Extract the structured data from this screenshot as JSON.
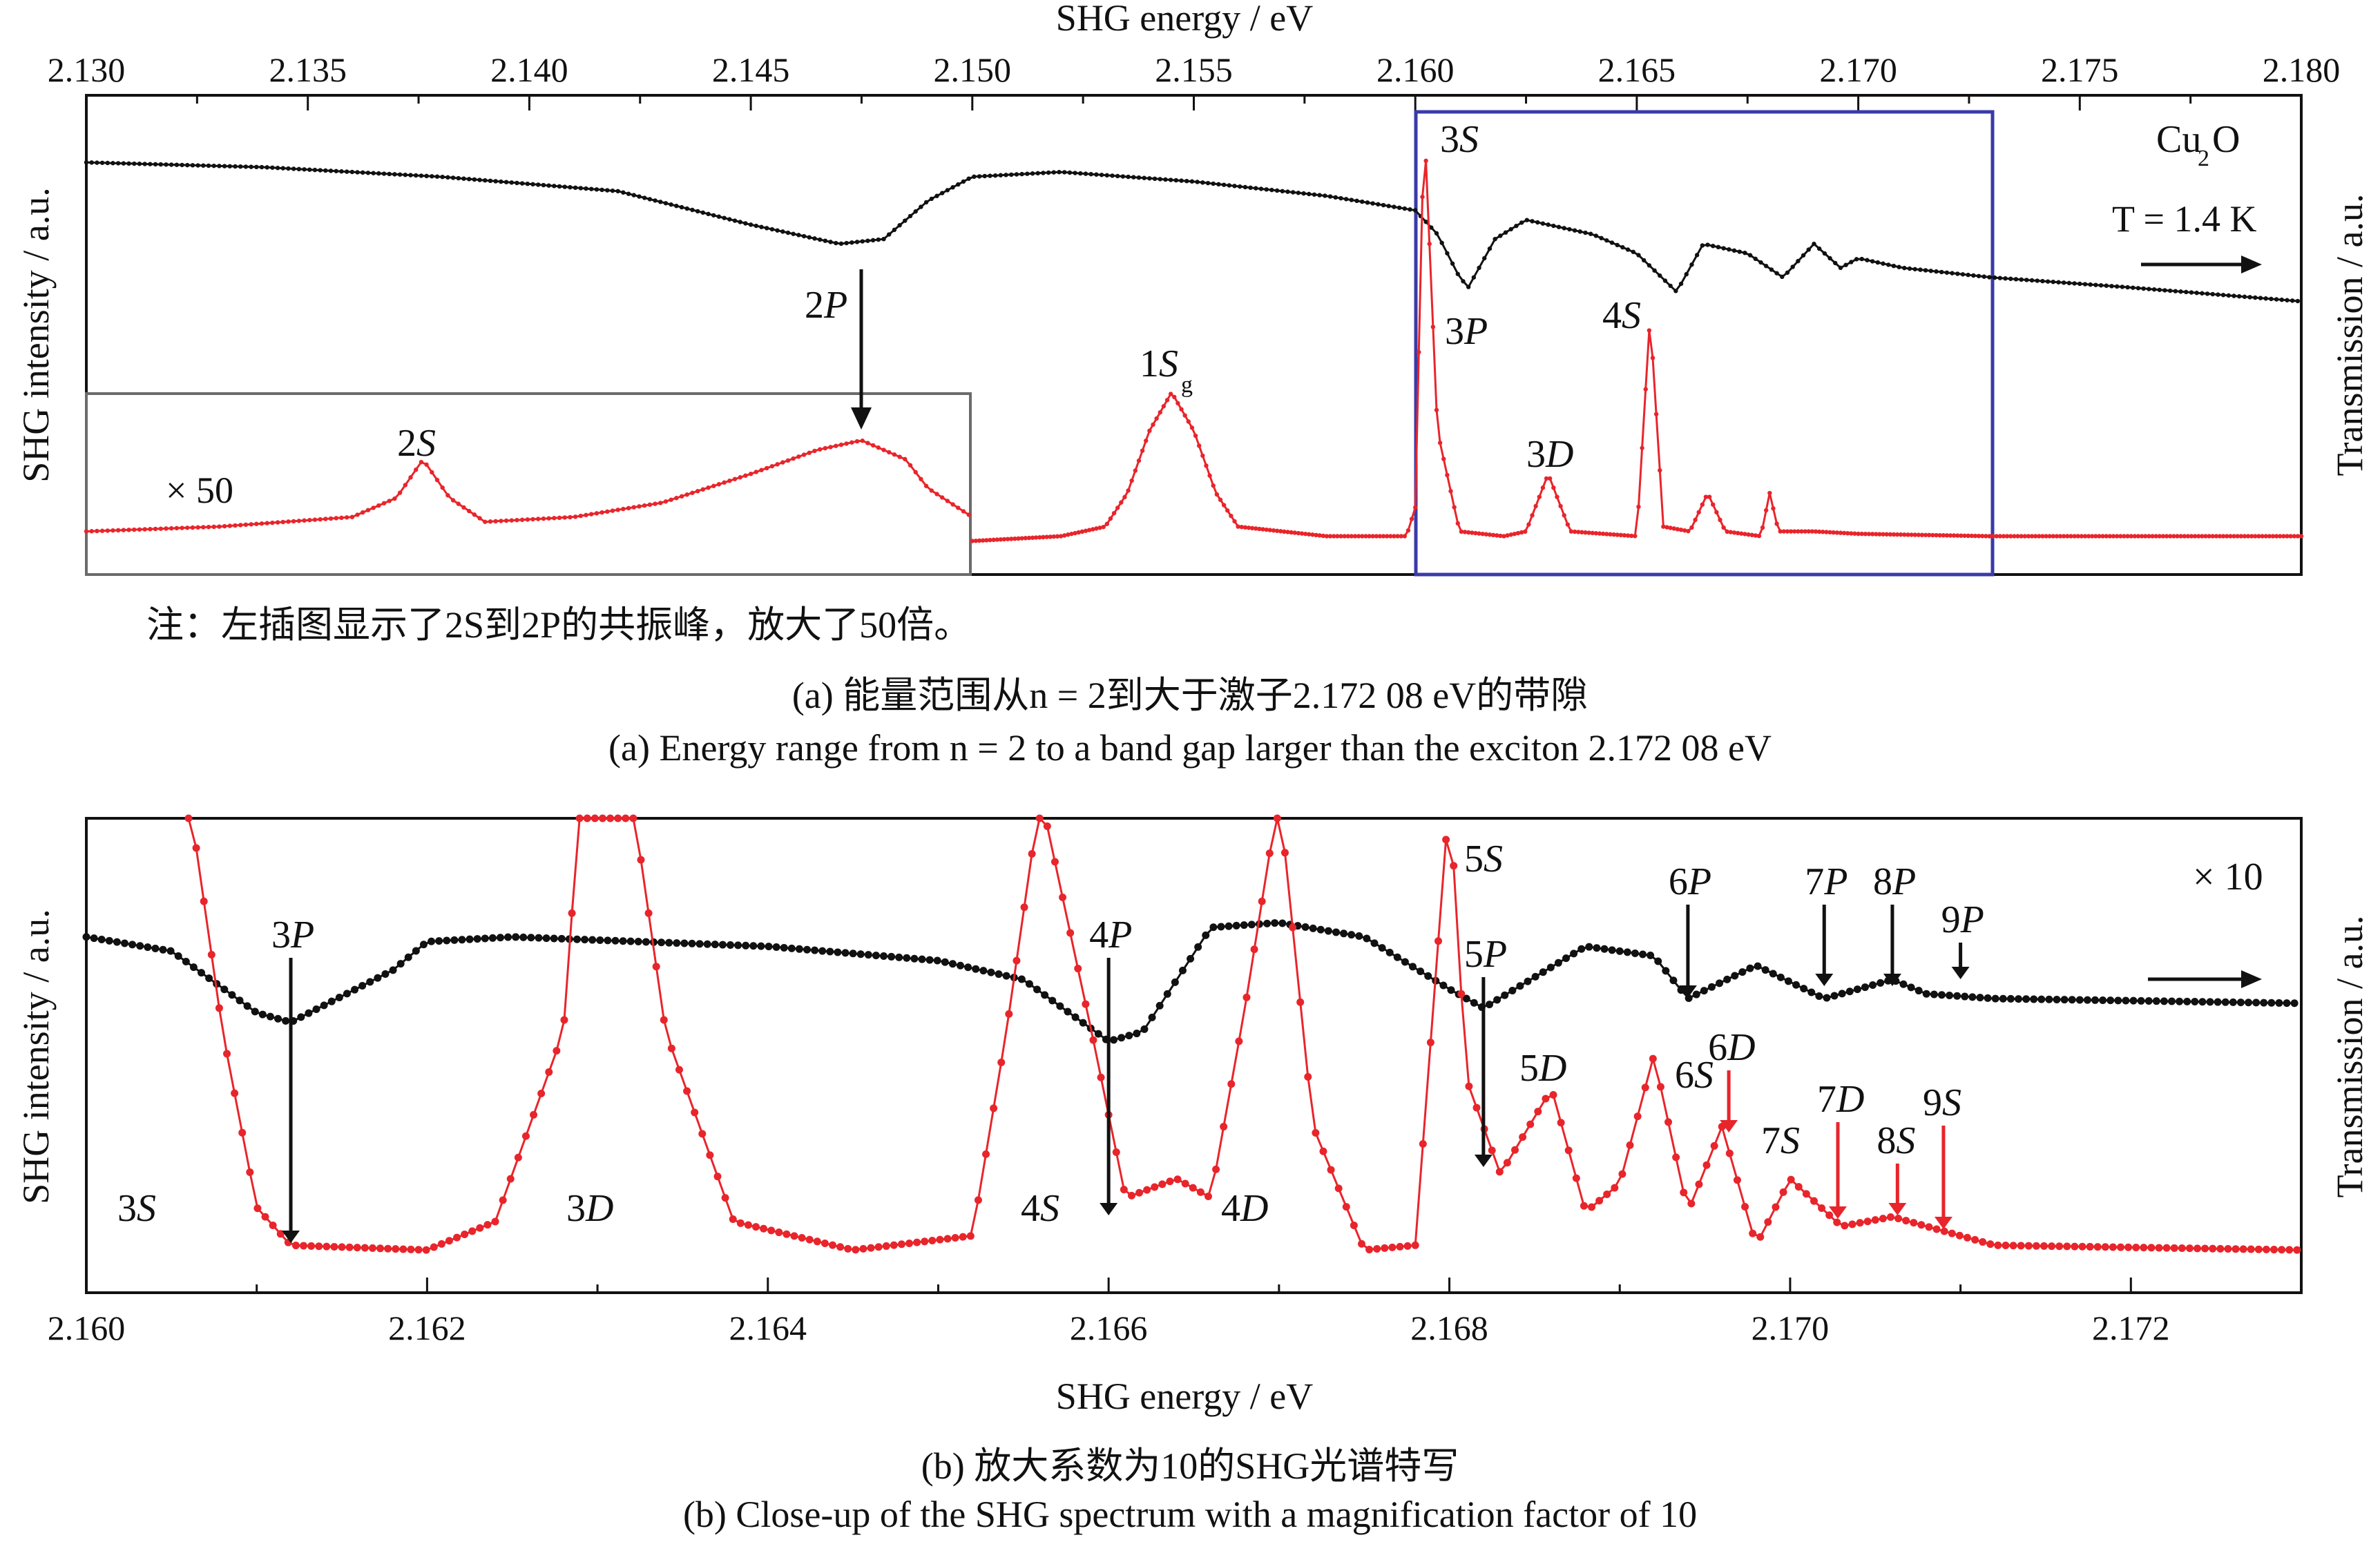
{
  "figure": {
    "panel_a": {
      "x_axis_title": "SHG energy / eV",
      "left_axis_title": "SHG intensity / a.u.",
      "right_axis_title": "Transmission / a.u.",
      "x_tick_labels": [
        "2.130",
        "2.135",
        "2.140",
        "2.145",
        "2.150",
        "2.155",
        "2.160",
        "2.165",
        "2.170",
        "2.175",
        "2.180"
      ],
      "note": "注：左插图显示了2S到2P的共振峰，放大了50倍。",
      "caption_cn": "(a) 能量范围从n = 2到大于激子2.172 08 eV的带隙",
      "caption_en": "(a) Energy range from n = 2 to a band gap larger than the exciton 2.172 08 eV"
    },
    "panel_b": {
      "x_axis_title": "SHG energy / eV",
      "left_axis_title": "SHG intensity / a.u.",
      "right_axis_title": "Transmission / a.u.",
      "x_tick_labels": [
        "2.160",
        "2.162",
        "2.164",
        "2.166",
        "2.168",
        "2.170",
        "2.172"
      ],
      "caption_cn": "(b) 放大系数为10的SHG光谱特写",
      "caption_en": "(b) Close-up of the SHG spectrum with a magnification factor of 10"
    }
  },
  "colors": {
    "shg": "#e8252b",
    "transmission": "#111111",
    "box": "#3a3aa8",
    "inset_box": "#6b6b6b",
    "red_arrow": "#e8252b"
  },
  "chart_data": [
    {
      "type": "line",
      "panel": "a",
      "xlabel": "SHG energy / eV",
      "ylabel": "SHG intensity / a.u.",
      "y2label": "Transmission / a.u.",
      "xlim": [
        2.13,
        2.18
      ],
      "ylim": [
        0,
        1
      ],
      "series": [
        {
          "key": "transmission",
          "points": [
            [
              2.13,
              0.86
            ],
            [
              2.134,
              0.85
            ],
            [
              2.138,
              0.83
            ],
            [
              2.142,
              0.8
            ],
            [
              2.145,
              0.73
            ],
            [
              2.147,
              0.69
            ],
            [
              2.148,
              0.7
            ],
            [
              2.149,
              0.78
            ],
            [
              2.15,
              0.83
            ],
            [
              2.152,
              0.84
            ],
            [
              2.155,
              0.82
            ],
            [
              2.158,
              0.79
            ],
            [
              2.16,
              0.76
            ],
            [
              2.1605,
              0.71
            ],
            [
              2.161,
              0.62
            ],
            [
              2.1612,
              0.6
            ],
            [
              2.1618,
              0.7
            ],
            [
              2.1625,
              0.74
            ],
            [
              2.164,
              0.71
            ],
            [
              2.165,
              0.67
            ],
            [
              2.1659,
              0.59
            ],
            [
              2.1665,
              0.69
            ],
            [
              2.1675,
              0.67
            ],
            [
              2.1683,
              0.62
            ],
            [
              2.169,
              0.69
            ],
            [
              2.1696,
              0.64
            ],
            [
              2.17,
              0.66
            ],
            [
              2.1705,
              0.65
            ],
            [
              2.171,
              0.64
            ],
            [
              2.173,
              0.62
            ],
            [
              2.176,
              0.6
            ],
            [
              2.18,
              0.57
            ]
          ]
        },
        {
          "key": "shg_main",
          "points": [
            [
              2.15,
              0.07
            ],
            [
              2.152,
              0.08
            ],
            [
              2.153,
              0.1
            ],
            [
              2.1535,
              0.17
            ],
            [
              2.154,
              0.3
            ],
            [
              2.1545,
              0.38
            ],
            [
              2.155,
              0.3
            ],
            [
              2.1555,
              0.17
            ],
            [
              2.156,
              0.1
            ],
            [
              2.158,
              0.08
            ],
            [
              2.1598,
              0.08
            ],
            [
              2.16,
              0.14
            ],
            [
              2.1602,
              0.95
            ],
            [
              2.1605,
              0.3
            ],
            [
              2.161,
              0.09
            ],
            [
              2.162,
              0.08
            ],
            [
              2.1625,
              0.09
            ],
            [
              2.163,
              0.21
            ],
            [
              2.1635,
              0.09
            ],
            [
              2.165,
              0.08
            ],
            [
              2.1653,
              0.54
            ],
            [
              2.1656,
              0.1
            ],
            [
              2.1662,
              0.09
            ],
            [
              2.1666,
              0.17
            ],
            [
              2.167,
              0.09
            ],
            [
              2.1678,
              0.08
            ],
            [
              2.168,
              0.17
            ],
            [
              2.1682,
              0.09
            ],
            [
              2.169,
              0.09
            ],
            [
              2.17,
              0.085
            ],
            [
              2.173,
              0.08
            ],
            [
              2.18,
              0.08
            ]
          ]
        },
        {
          "key": "shg_inset_x50",
          "points": [
            [
              2.13,
              0.09
            ],
            [
              2.133,
              0.1
            ],
            [
              2.136,
              0.12
            ],
            [
              2.137,
              0.16
            ],
            [
              2.1376,
              0.24
            ],
            [
              2.1382,
              0.16
            ],
            [
              2.139,
              0.11
            ],
            [
              2.141,
              0.12
            ],
            [
              2.143,
              0.15
            ],
            [
              2.145,
              0.21
            ],
            [
              2.1465,
              0.26
            ],
            [
              2.1475,
              0.28
            ],
            [
              2.1485,
              0.24
            ],
            [
              2.149,
              0.18
            ],
            [
              2.15,
              0.12
            ]
          ]
        }
      ],
      "annotations": [
        {
          "text": "2P",
          "x": 2.1475,
          "kind": "arrow"
        },
        {
          "text": "2S",
          "x": 2.1376
        },
        {
          "text": "× 50"
        },
        {
          "text": "1Sg",
          "x": 2.1545
        },
        {
          "text": "3S",
          "x": 2.1602
        },
        {
          "text": "3P",
          "x": 2.1612
        },
        {
          "text": "3D",
          "x": 2.163
        },
        {
          "text": "4S",
          "x": 2.1653
        },
        {
          "text": "Cu2O"
        },
        {
          "text": "T = 1.4 K"
        }
      ]
    },
    {
      "type": "line",
      "panel": "b",
      "xlabel": "SHG energy / eV",
      "ylabel": "SHG intensity / a.u.",
      "y2label": "Transmission / a.u.",
      "xlim": [
        2.16,
        2.173
      ],
      "ylim": [
        0,
        1
      ],
      "series": [
        {
          "key": "transmission",
          "points": [
            [
              2.16,
              0.75
            ],
            [
              2.1605,
              0.72
            ],
            [
              2.161,
              0.59
            ],
            [
              2.1612,
              0.57
            ],
            [
              2.1618,
              0.68
            ],
            [
              2.162,
              0.74
            ],
            [
              2.1625,
              0.75
            ],
            [
              2.164,
              0.73
            ],
            [
              2.165,
              0.7
            ],
            [
              2.1655,
              0.66
            ],
            [
              2.166,
              0.53
            ],
            [
              2.1662,
              0.55
            ],
            [
              2.1666,
              0.77
            ],
            [
              2.167,
              0.78
            ],
            [
              2.1675,
              0.75
            ],
            [
              2.168,
              0.64
            ],
            [
              2.1682,
              0.6
            ],
            [
              2.1688,
              0.73
            ],
            [
              2.1692,
              0.71
            ],
            [
              2.1694,
              0.62
            ],
            [
              2.1698,
              0.69
            ],
            [
              2.1702,
              0.62
            ],
            [
              2.1706,
              0.66
            ],
            [
              2.1708,
              0.63
            ],
            [
              2.1712,
              0.62
            ],
            [
              2.173,
              0.61
            ]
          ]
        },
        {
          "key": "shg_x10",
          "points": [
            [
              2.1606,
              1.05
            ],
            [
              2.1608,
              0.55
            ],
            [
              2.161,
              0.18
            ],
            [
              2.1612,
              0.1
            ],
            [
              2.162,
              0.09
            ],
            [
              2.1624,
              0.15
            ],
            [
              2.1628,
              0.55
            ],
            [
              2.1629,
              1.05
            ],
            [
              2.1632,
              1.05
            ],
            [
              2.1634,
              0.55
            ],
            [
              2.1638,
              0.15
            ],
            [
              2.1645,
              0.09
            ],
            [
              2.1652,
              0.12
            ],
            [
              2.1654,
              0.55
            ],
            [
              2.1656,
              1.05
            ],
            [
              2.1659,
              0.55
            ],
            [
              2.1661,
              0.2
            ],
            [
              2.1664,
              0.24
            ],
            [
              2.1666,
              0.2
            ],
            [
              2.1668,
              0.6
            ],
            [
              2.167,
              1.05
            ],
            [
              2.1672,
              0.35
            ],
            [
              2.1675,
              0.09
            ],
            [
              2.1678,
              0.1
            ],
            [
              2.168,
              1.05
            ],
            [
              2.1681,
              0.45
            ],
            [
              2.1683,
              0.25
            ],
            [
              2.1686,
              0.43
            ],
            [
              2.1688,
              0.17
            ],
            [
              2.169,
              0.23
            ],
            [
              2.1692,
              0.5
            ],
            [
              2.1694,
              0.17
            ],
            [
              2.1696,
              0.35
            ],
            [
              2.1698,
              0.1
            ],
            [
              2.17,
              0.24
            ],
            [
              2.1703,
              0.14
            ],
            [
              2.1706,
              0.16
            ],
            [
              2.1709,
              0.13
            ],
            [
              2.1712,
              0.1
            ],
            [
              2.173,
              0.09
            ]
          ]
        }
      ],
      "annotations": [
        {
          "text": "3P",
          "x": 2.1612
        },
        {
          "text": "4P",
          "x": 2.166
        },
        {
          "text": "5P",
          "x": 2.1682
        },
        {
          "text": "6P",
          "x": 2.1694
        },
        {
          "text": "7P",
          "x": 2.1702
        },
        {
          "text": "8P",
          "x": 2.1706
        },
        {
          "text": "9P",
          "x": 2.171
        },
        {
          "text": "3S"
        },
        {
          "text": "3D"
        },
        {
          "text": "4S"
        },
        {
          "text": "4D"
        },
        {
          "text": "5S"
        },
        {
          "text": "5D"
        },
        {
          "text": "6S"
        },
        {
          "text": "6D"
        },
        {
          "text": "7S"
        },
        {
          "text": "7D"
        },
        {
          "text": "8S"
        },
        {
          "text": "9S"
        },
        {
          "text": "× 10"
        }
      ]
    }
  ]
}
